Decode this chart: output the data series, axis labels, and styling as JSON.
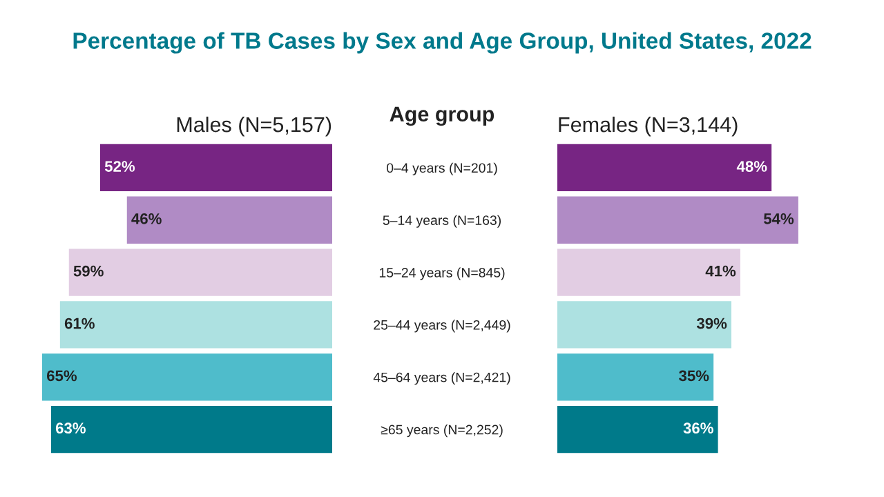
{
  "chart_data": [
    {
      "type": "bar",
      "orientation": "horizontal",
      "title": "Percentage of TB Cases by Sex and Age Group, United States, 2022",
      "subtitle": "Males (N=5,157)",
      "ylabel": "Age group",
      "categories": [
        "0–4 years (N=201)",
        "5–14 years (N=163)",
        "15–24 years (N=845)",
        "25–44 years (N=2,449)",
        "45–64 years (N=2,421)",
        "≥65 years (N=2,252)"
      ],
      "values": [
        52,
        46,
        59,
        61,
        65,
        63
      ],
      "value_labels": [
        "52%",
        "46%",
        "59%",
        "61%",
        "65%",
        "63%"
      ],
      "colors": [
        "#772583",
        "#b08bc5",
        "#e2cde3",
        "#ade1e1",
        "#4fbccb",
        "#007a8a"
      ],
      "tick_labels": "y",
      "grid": false,
      "legend": false
    },
    {
      "type": "bar",
      "orientation": "horizontal",
      "subtitle": "Females (N=3,144)",
      "categories": [
        null,
        null,
        null,
        null,
        null,
        null
      ],
      "values": [
        48,
        54,
        41,
        39,
        35,
        36
      ],
      "value_labels": [
        "48%",
        "54%",
        "41%",
        "39%",
        "35%",
        "36%"
      ],
      "colors": [
        "#772583",
        "#b08bc5",
        "#e2cde3",
        "#ade1e1",
        "#4fbccb",
        "#007a8a"
      ],
      "tick_labels": false,
      "grid": false,
      "legend": false
    }
  ]
}
